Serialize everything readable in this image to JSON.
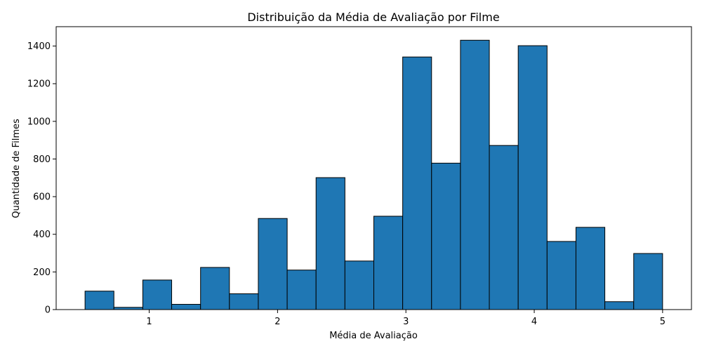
{
  "chart_data": {
    "type": "bar",
    "subtype": "histogram",
    "title": "Distribuição da Média de Avaliação por Filme",
    "xlabel": "Média de Avaliação",
    "ylabel": "Quantidade de Filmes",
    "bin_edges": [
      0.5,
      0.725,
      0.95,
      1.175,
      1.4,
      1.625,
      1.85,
      2.075,
      2.3,
      2.525,
      2.75,
      2.975,
      3.2,
      3.425,
      3.65,
      3.875,
      4.1,
      4.325,
      4.55,
      4.775,
      5.0
    ],
    "values": [
      98,
      12,
      157,
      28,
      224,
      84,
      484,
      210,
      701,
      258,
      496,
      1342,
      778,
      1431,
      872,
      1402,
      362,
      437,
      42,
      298
    ],
    "xlim": [
      0.275,
      5.225
    ],
    "ylim": [
      0,
      1503
    ],
    "xticks": [
      1,
      2,
      3,
      4,
      5
    ],
    "yticks": [
      0,
      200,
      400,
      600,
      800,
      1000,
      1200,
      1400
    ],
    "bar_color": "#1f77b4",
    "edge_color": "#000000",
    "grid": false,
    "legend": false
  }
}
